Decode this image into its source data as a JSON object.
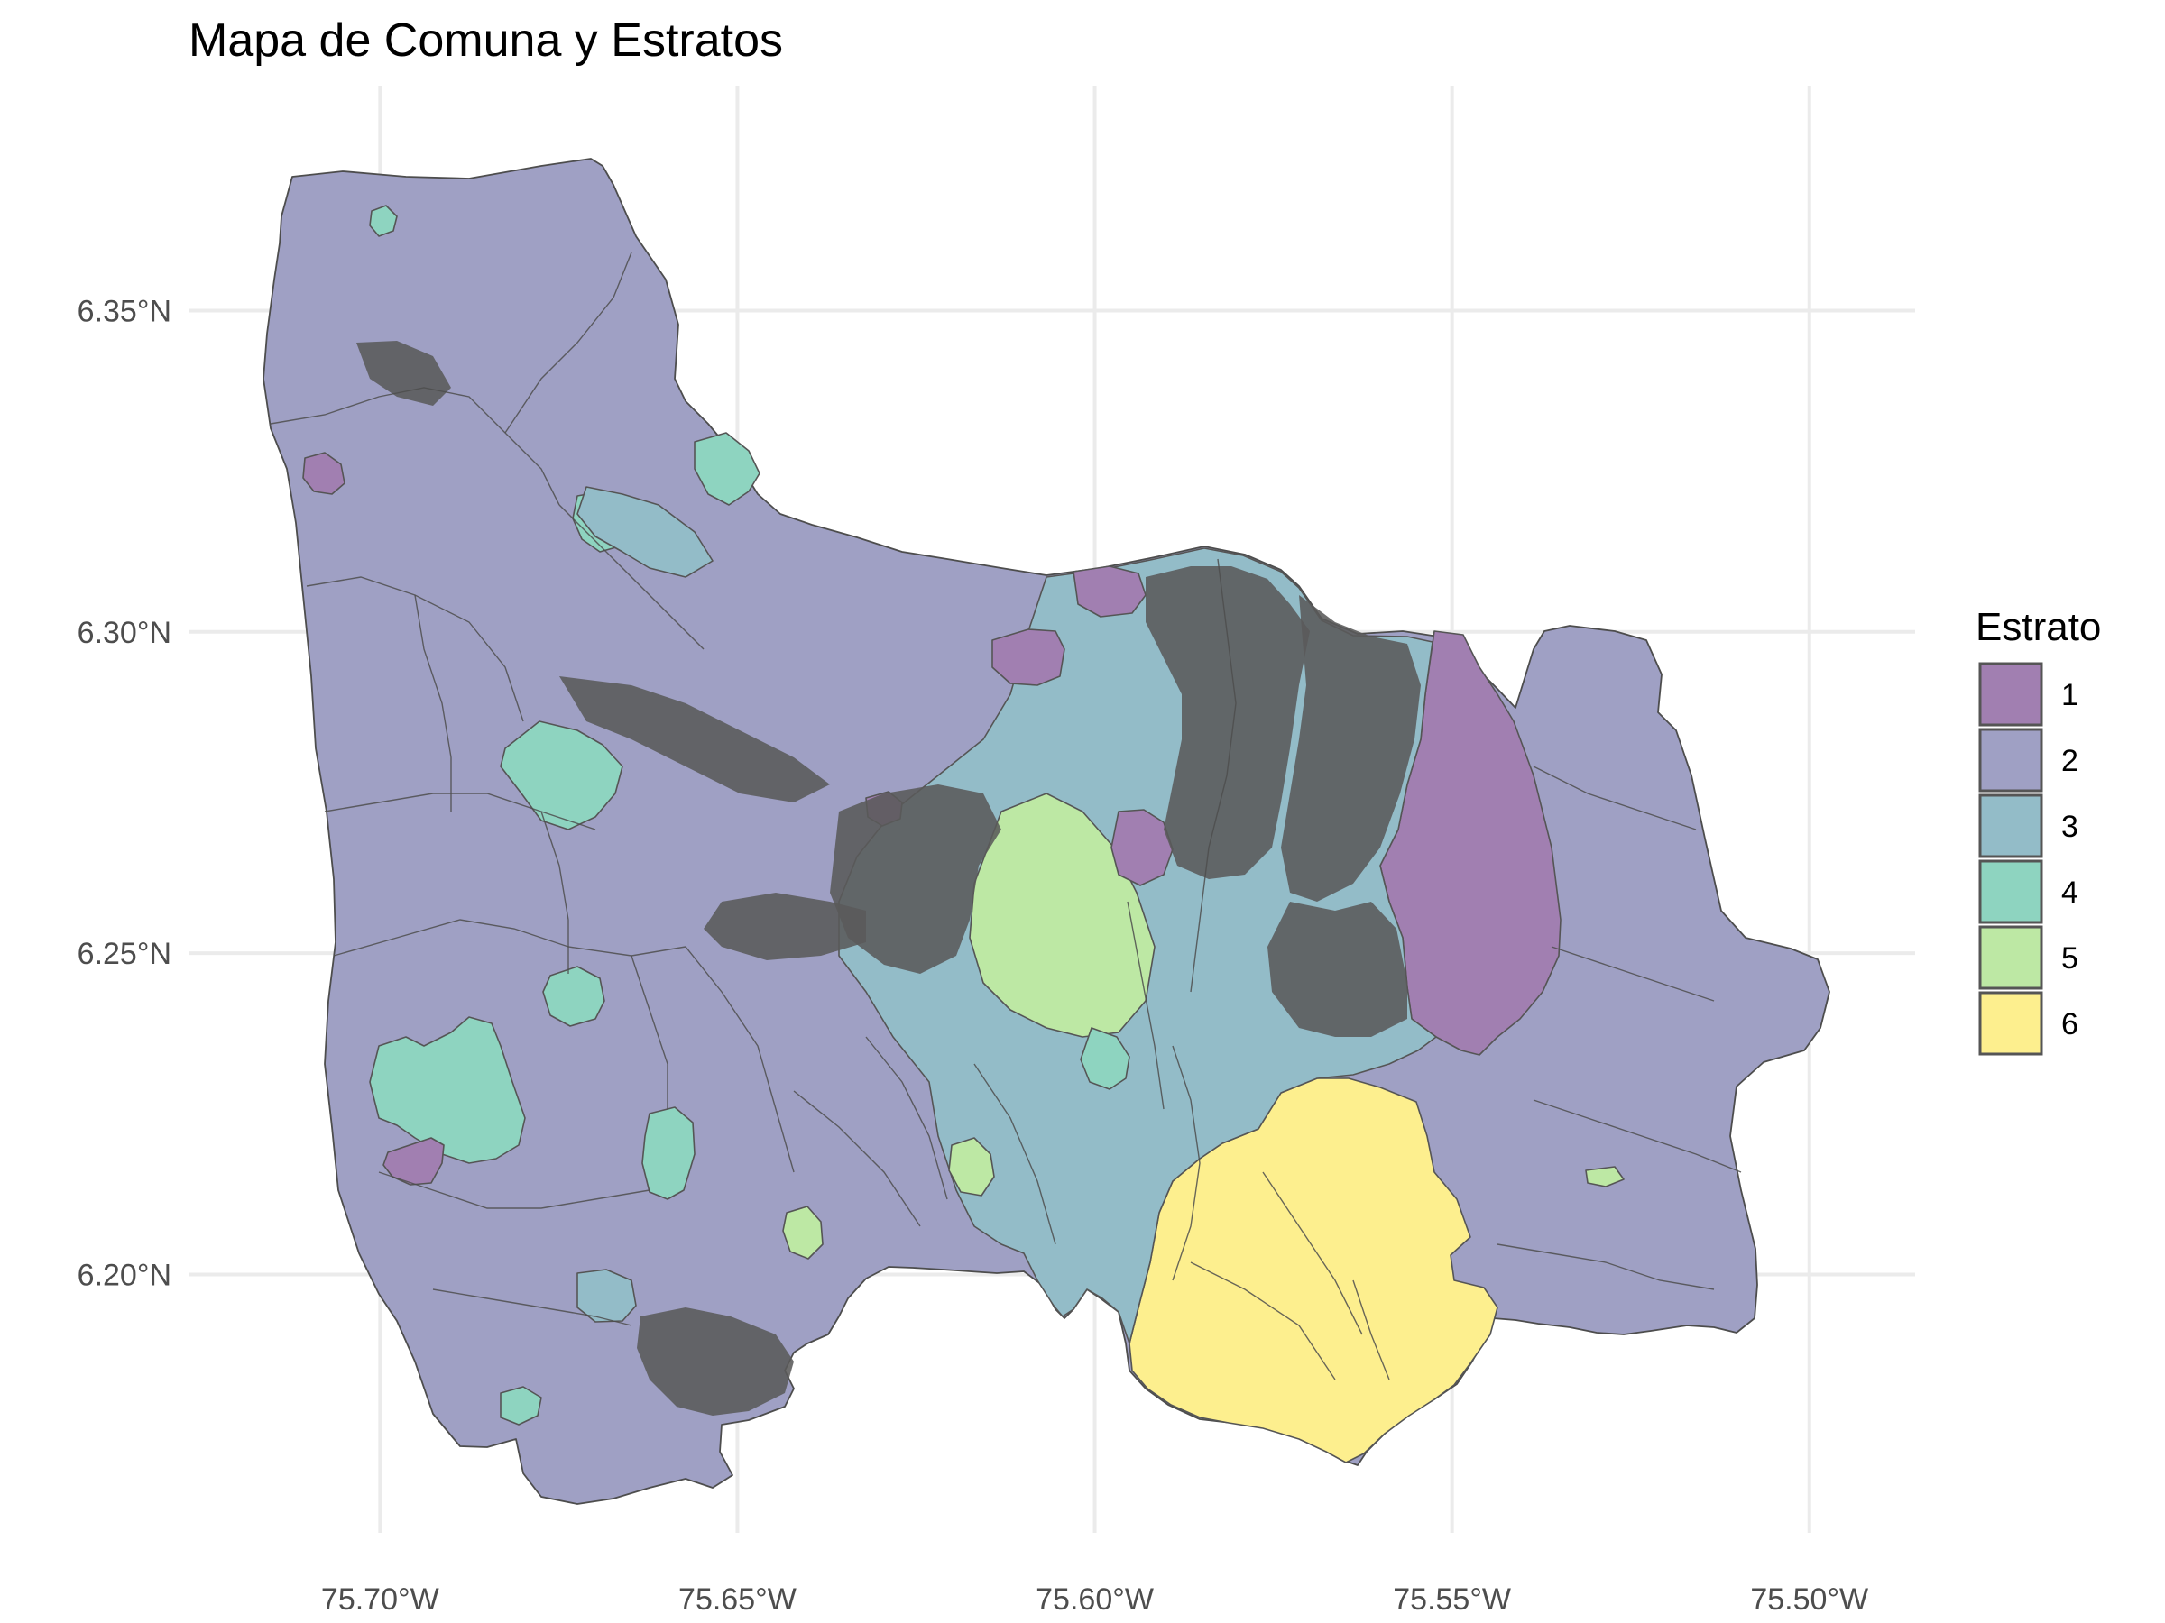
{
  "chart_data": {
    "type": "map",
    "title": "Mapa de Comuna y Estratos",
    "x_ticks": [
      "75.70°W",
      "75.65°W",
      "75.60°W",
      "75.55°W",
      "75.50°W"
    ],
    "y_ticks": [
      "6.35°N",
      "6.30°N",
      "6.25°N",
      "6.20°N"
    ],
    "x_values": [
      -75.7,
      -75.65,
      -75.6,
      -75.55,
      -75.5
    ],
    "y_values": [
      6.35,
      6.3,
      6.25,
      6.2
    ],
    "xlim": [
      -75.7268,
      -75.4852
    ],
    "ylim": [
      6.1598,
      6.385
    ],
    "grid": true,
    "legend": {
      "title": "Estrato",
      "placement": "right",
      "entries": [
        {
          "label": "1",
          "color": "#a17fb1"
        },
        {
          "label": "2",
          "color": "#9fa0c4"
        },
        {
          "label": "3",
          "color": "#93bcc8"
        },
        {
          "label": "4",
          "color": "#8ed4c0"
        },
        {
          "label": "5",
          "color": "#bde8a4"
        },
        {
          "label": "6",
          "color": "#fdef8e"
        }
      ]
    },
    "region_fill": "#9fa0c4",
    "boundary_color": "#4d4d4d"
  }
}
